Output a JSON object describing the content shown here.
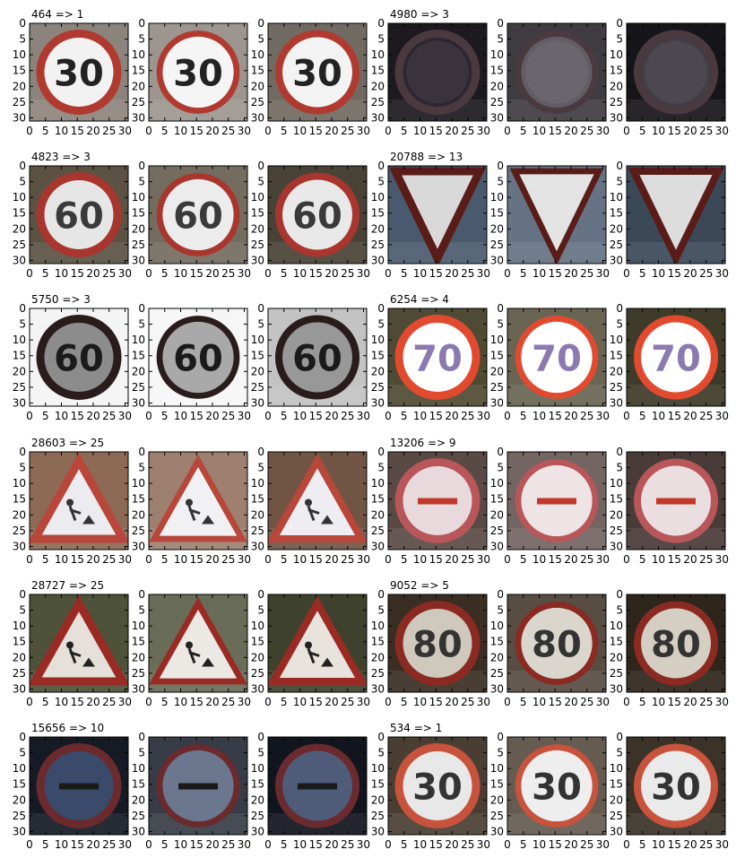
{
  "chart_data": {
    "type": "image-grid",
    "x_ticks": [
      "0",
      "5",
      "10",
      "15",
      "20",
      "25",
      "30"
    ],
    "y_ticks": [
      "0",
      "5",
      "10",
      "15",
      "20",
      "25",
      "30"
    ],
    "xlim": [
      0,
      31
    ],
    "ylim": [
      0,
      31
    ],
    "groups": [
      {
        "title": "464 => 1",
        "kind": "circle-number",
        "number": "30",
        "ring": "#b03a30",
        "face": "#f2f2f2",
        "bg": "#8c847c",
        "glyph": "#222222"
      },
      {
        "title": "4980 => 3",
        "kind": "circle-blur",
        "number": "",
        "ring": "#4a3a40",
        "face": "#2d2630",
        "bg": "#1c1a1f",
        "glyph": "#6a6a78"
      },
      {
        "title": "4823 => 3",
        "kind": "circle-number",
        "number": "60",
        "ring": "#a8362f",
        "face": "#e6e6e6",
        "bg": "#5b5243",
        "glyph": "#3a3a3a"
      },
      {
        "title": "20788 => 13",
        "kind": "yield",
        "number": "",
        "ring": "#5a1c18",
        "face": "#d9d9d9",
        "bg": "#4a5a6e",
        "glyph": "#222222"
      },
      {
        "title": "5750 => 3",
        "kind": "circle-number",
        "number": "60",
        "ring": "#2a1c1c",
        "face": "#8c8c8c",
        "bg": "#f4f4f4",
        "glyph": "#1a1a1a"
      },
      {
        "title": "6254 => 4",
        "kind": "circle-number",
        "number": "70",
        "ring": "#e24a30",
        "face": "#ffffff",
        "bg": "#4f4a33",
        "glyph": "#8a7ab0"
      },
      {
        "title": "28603 => 25",
        "kind": "triangle-work",
        "number": "",
        "ring": "#b8463a",
        "face": "#ecebef",
        "bg": "#8c6a55",
        "glyph": "#333333"
      },
      {
        "title": "13206 => 9",
        "kind": "circle-bar",
        "number": "",
        "ring": "#b8565a",
        "face": "#e8dadc",
        "bg": "#5a4a46",
        "glyph": "#c0392b"
      },
      {
        "title": "28727 => 25",
        "kind": "triangle-work",
        "number": "",
        "ring": "#9a2a24",
        "face": "#e6e0da",
        "bg": "#4e5238",
        "glyph": "#222222"
      },
      {
        "title": "9052 => 5",
        "kind": "circle-number",
        "number": "80",
        "ring": "#8a2a22",
        "face": "#cfc8bc",
        "bg": "#3a2e22",
        "glyph": "#333333"
      },
      {
        "title": "15656 => 10",
        "kind": "circle-blur-bar",
        "number": "",
        "ring": "#6a2a2e",
        "face": "#3a4a6a",
        "bg": "#151a25",
        "glyph": "#1a1a1a"
      },
      {
        "title": "534 => 1",
        "kind": "circle-number",
        "number": "30",
        "ring": "#c8533c",
        "face": "#e8e8e8",
        "bg": "#4a3e32",
        "glyph": "#333333"
      }
    ],
    "variant_styles": [
      {
        "ring_scale": 1.0,
        "face_lighten": 0.0,
        "bg_darken": 0.0
      },
      {
        "ring_scale": 0.75,
        "face_lighten": 0.25,
        "bg_darken": -0.15
      },
      {
        "ring_scale": 0.9,
        "face_lighten": 0.1,
        "bg_darken": 0.2
      }
    ]
  }
}
